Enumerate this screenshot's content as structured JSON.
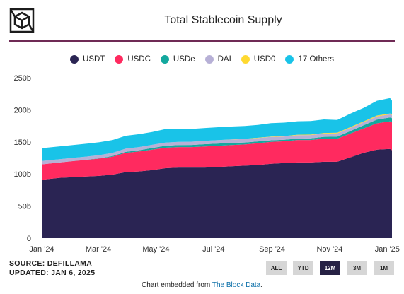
{
  "header": {
    "title": "Total Stablecoin Supply",
    "logo_icon": "theblock-cube-logo"
  },
  "footer": {
    "source": "SOURCE: DEFILLAMA",
    "updated": "UPDATED: JAN 6, 2025",
    "embed_prefix": "Chart embedded from ",
    "embed_link": "The Block Data",
    "embed_suffix": "."
  },
  "range_buttons": [
    {
      "label": "ALL",
      "active": false
    },
    {
      "label": "YTD",
      "active": false
    },
    {
      "label": "12M",
      "active": true
    },
    {
      "label": "3M",
      "active": false
    },
    {
      "label": "1M",
      "active": false
    }
  ],
  "chart_data": {
    "type": "area",
    "stacked": true,
    "x": [
      "2024-01-06",
      "2024-01-20",
      "2024-02-03",
      "2024-02-17",
      "2024-03-02",
      "2024-03-16",
      "2024-03-30",
      "2024-04-13",
      "2024-04-27",
      "2024-05-11",
      "2024-05-25",
      "2024-06-08",
      "2024-06-22",
      "2024-07-06",
      "2024-07-20",
      "2024-08-03",
      "2024-08-17",
      "2024-08-31",
      "2024-09-14",
      "2024-09-28",
      "2024-10-12",
      "2024-10-26",
      "2024-11-09",
      "2024-11-23",
      "2024-12-07",
      "2024-12-21",
      "2025-01-04",
      "2025-01-06"
    ],
    "series": [
      {
        "name": "USDT",
        "color": "#2a2453",
        "values": [
          91,
          94,
          95,
          96,
          97,
          99,
          103,
          104,
          106,
          109,
          110,
          110,
          110,
          111,
          112,
          113,
          114,
          116,
          117,
          118,
          118,
          119,
          119,
          126,
          133,
          138,
          139,
          137
        ]
      },
      {
        "name": "USDC",
        "color": "#ff2a5f",
        "values": [
          24,
          24,
          25,
          26,
          27,
          28,
          30,
          31,
          32,
          32,
          32,
          32,
          33,
          33,
          33,
          33,
          34,
          34,
          34,
          35,
          35,
          36,
          36,
          37,
          38,
          41,
          43,
          44
        ]
      },
      {
        "name": "USDe",
        "color": "#13a89e",
        "values": [
          0,
          0,
          0.1,
          0.2,
          0.5,
          1,
          1.5,
          2,
          2.5,
          3,
          3,
          3.3,
          3.5,
          3.5,
          3.5,
          3.1,
          2.8,
          2.5,
          2.3,
          2.2,
          2.5,
          2.9,
          3.2,
          4,
          5,
          5.8,
          6,
          6
        ]
      },
      {
        "name": "DAI",
        "color": "#b7b0d6",
        "values": [
          5.3,
          5.1,
          5,
          4.9,
          4.9,
          5,
          5.1,
          5,
          5,
          5,
          5,
          5,
          5.1,
          5.2,
          5.2,
          5.3,
          5.2,
          5.3,
          5.2,
          5.3,
          5.2,
          5.2,
          5.1,
          5,
          4.9,
          5,
          5,
          5
        ]
      },
      {
        "name": "USD0",
        "color": "#ffd930",
        "values": [
          0,
          0,
          0,
          0,
          0,
          0,
          0,
          0,
          0,
          0,
          0,
          0,
          0.1,
          0.2,
          0.3,
          0.4,
          0.5,
          0.5,
          0.6,
          0.7,
          0.8,
          0.9,
          1,
          1.1,
          1.2,
          1.3,
          1.3,
          1.3
        ]
      },
      {
        "name": "17 Others",
        "color": "#19c3e8",
        "values": [
          20,
          20,
          20,
          20,
          20,
          20,
          20,
          20,
          20,
          21,
          20,
          20,
          20,
          20,
          20,
          20,
          20,
          21,
          21,
          21,
          21,
          21,
          20,
          21,
          21,
          23,
          24,
          21
        ]
      }
    ],
    "ylim": [
      0,
      250
    ],
    "yticks": [
      0,
      50,
      100,
      150,
      200,
      250
    ],
    "yticklabels": [
      "0",
      "50b",
      "100b",
      "150b",
      "200b",
      "250b"
    ],
    "xticks": [
      "2024-01-01",
      "2024-03-01",
      "2024-05-01",
      "2024-07-01",
      "2024-09-01",
      "2024-11-01",
      "2025-01-01"
    ],
    "xticklabels": [
      "Jan '24",
      "Mar '24",
      "May '24",
      "Jul '24",
      "Sep '24",
      "Nov '24",
      "Jan '25"
    ],
    "xlim": [
      "2024-01-01",
      "2025-01-06"
    ],
    "grid": false,
    "legend_position": "top"
  }
}
